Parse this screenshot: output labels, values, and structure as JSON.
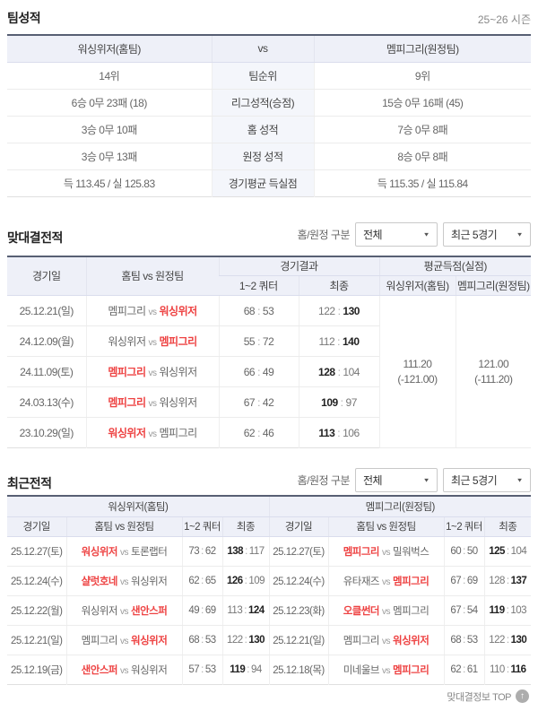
{
  "colors": {
    "accent": "#ee4343",
    "header_bg": "#eef0f8",
    "mid_bg": "#f4f6fb",
    "top_border": "#575f73"
  },
  "season": "25~26 시즌",
  "filters": {
    "label": "홈/원정 구분",
    "scope": "전체",
    "range": "최근 5경기"
  },
  "section_team": {
    "title": "팀성적",
    "home_header": "워싱위저(홈팀)",
    "vs_label": "vs",
    "away_header": "멤피그리(원정팀)",
    "rows": [
      {
        "home": "14위",
        "label": "팀순위",
        "away": "9위"
      },
      {
        "home": "6승 0무 23패 (18)",
        "label": "리그성적(승점)",
        "away": "15승 0무 16패 (45)"
      },
      {
        "home": "3승 0무 10패",
        "label": "홈 성적",
        "away": "7승 0무 8패"
      },
      {
        "home": "3승 0무 13패",
        "label": "원정 성적",
        "away": "8승 0무 8패"
      },
      {
        "home": "득 113.45 / 실 125.83",
        "label": "경기평균 득실점",
        "away": "득 115.35 / 실 115.84"
      }
    ]
  },
  "section_h2h": {
    "title": "맞대결전적",
    "headers": {
      "date": "경기일",
      "matchup": "홈팀 vs 원정팀",
      "result": "경기결과",
      "avg": "평균득점(실점)",
      "quarter": "1~2 쿼터",
      "final": "최종",
      "avg_home": "워싱위저(홈팀)",
      "avg_away": "멤피그리(원정팀)"
    },
    "rows": [
      {
        "date": "25.12.21(일)",
        "home": "멤피그리",
        "away": "워싱위저",
        "winner": "away",
        "q": [
          "68",
          "53"
        ],
        "f": [
          "122",
          "130"
        ]
      },
      {
        "date": "24.12.09(월)",
        "home": "워싱위저",
        "away": "멤피그리",
        "winner": "away",
        "q": [
          "55",
          "72"
        ],
        "f": [
          "112",
          "140"
        ]
      },
      {
        "date": "24.11.09(토)",
        "home": "멤피그리",
        "away": "워싱위저",
        "winner": "home",
        "q": [
          "66",
          "49"
        ],
        "f": [
          "128",
          "104"
        ]
      },
      {
        "date": "24.03.13(수)",
        "home": "멤피그리",
        "away": "워싱위저",
        "winner": "home",
        "q": [
          "67",
          "42"
        ],
        "f": [
          "109",
          "97"
        ]
      },
      {
        "date": "23.10.29(일)",
        "home": "워싱위저",
        "away": "멤피그리",
        "winner": "home",
        "q": [
          "62",
          "46"
        ],
        "f": [
          "113",
          "106"
        ]
      }
    ],
    "avg_home": {
      "value": "111.20",
      "sub": "(-121.00)"
    },
    "avg_away": {
      "value": "121.00",
      "sub": "(-111.20)"
    }
  },
  "section_recent": {
    "title": "최근전적",
    "home_group": "워싱위저(홈팀)",
    "away_group": "멤피그리(원정팀)",
    "col_headers": [
      "경기일",
      "홈팀 vs 원정팀",
      "1~2 쿼터",
      "최종"
    ],
    "home_rows": [
      {
        "date": "25.12.27(토)",
        "home": "워싱위저",
        "away": "토론랩터",
        "winner": "home",
        "q": [
          "73",
          "62"
        ],
        "f": [
          "138",
          "117"
        ]
      },
      {
        "date": "25.12.24(수)",
        "home": "샬럿호네",
        "away": "워싱위저",
        "winner": "home",
        "q": [
          "62",
          "65"
        ],
        "f": [
          "126",
          "109"
        ]
      },
      {
        "date": "25.12.22(월)",
        "home": "워싱위저",
        "away": "샌안스퍼",
        "winner": "away",
        "q": [
          "49",
          "69"
        ],
        "f": [
          "113",
          "124"
        ]
      },
      {
        "date": "25.12.21(일)",
        "home": "멤피그리",
        "away": "워싱위저",
        "winner": "away",
        "q": [
          "68",
          "53"
        ],
        "f": [
          "122",
          "130"
        ]
      },
      {
        "date": "25.12.19(금)",
        "home": "샌안스퍼",
        "away": "워싱위저",
        "winner": "home",
        "q": [
          "57",
          "53"
        ],
        "f": [
          "119",
          "94"
        ]
      }
    ],
    "away_rows": [
      {
        "date": "25.12.27(토)",
        "home": "멤피그리",
        "away": "밀워벅스",
        "winner": "home",
        "q": [
          "60",
          "50"
        ],
        "f": [
          "125",
          "104"
        ]
      },
      {
        "date": "25.12.24(수)",
        "home": "유타재즈",
        "away": "멤피그리",
        "winner": "away",
        "q": [
          "67",
          "69"
        ],
        "f": [
          "128",
          "137"
        ]
      },
      {
        "date": "25.12.23(화)",
        "home": "오클썬더",
        "away": "멤피그리",
        "winner": "home",
        "q": [
          "67",
          "54"
        ],
        "f": [
          "119",
          "103"
        ]
      },
      {
        "date": "25.12.21(일)",
        "home": "멤피그리",
        "away": "워싱위저",
        "winner": "away",
        "q": [
          "68",
          "53"
        ],
        "f": [
          "122",
          "130"
        ]
      },
      {
        "date": "25.12.18(목)",
        "home": "미네울브",
        "away": "멤피그리",
        "winner": "away",
        "q": [
          "62",
          "61"
        ],
        "f": [
          "110",
          "116"
        ]
      }
    ]
  },
  "footer": {
    "top_link": "맞대결정보 TOP"
  }
}
